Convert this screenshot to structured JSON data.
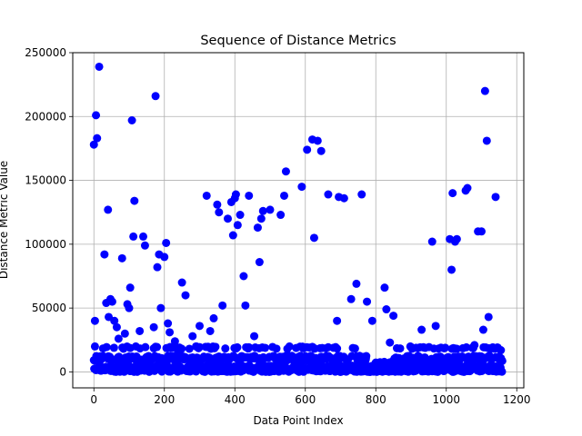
{
  "chart_data": {
    "type": "scatter",
    "title": "Sequence of Distance Metrics",
    "xlabel": "Data Point Index",
    "ylabel": "Distance Metric Value",
    "xlim": [
      -60,
      1220
    ],
    "ylim": [
      -12500,
      250000
    ],
    "x_ticks": [
      0,
      200,
      400,
      600,
      800,
      1000,
      1200
    ],
    "y_ticks": [
      0,
      50000,
      100000,
      150000,
      200000,
      250000
    ],
    "grid": true,
    "color": "#0000ff",
    "x": [
      0,
      3,
      6,
      9,
      15,
      18,
      30,
      35,
      40,
      42,
      47,
      52,
      58,
      65,
      70,
      80,
      88,
      95,
      100,
      103,
      108,
      112,
      115,
      130,
      140,
      145,
      170,
      175,
      180,
      185,
      190,
      200,
      205,
      210,
      215,
      230,
      240,
      250,
      260,
      280,
      290,
      300,
      320,
      330,
      340,
      350,
      355,
      365,
      380,
      390,
      395,
      400,
      403,
      408,
      415,
      425,
      430,
      440,
      455,
      465,
      470,
      475,
      480,
      500,
      530,
      540,
      545,
      590,
      605,
      620,
      625,
      635,
      645,
      665,
      690,
      695,
      710,
      730,
      745,
      760,
      775,
      790,
      825,
      830,
      840,
      850,
      930,
      960,
      970,
      985,
      1010,
      1015,
      1018,
      1025,
      1030,
      1055,
      1060,
      1080,
      1090,
      1100,
      1105,
      1110,
      1115,
      1120,
      1140,
      1150,
      1155
    ],
    "y": [
      178000,
      40000,
      201000,
      183000,
      239000,
      9000,
      92000,
      54000,
      127000,
      43000,
      57000,
      55000,
      40000,
      35000,
      26000,
      89000,
      30000,
      53000,
      50000,
      66000,
      197000,
      106000,
      134000,
      32000,
      106000,
      99000,
      35000,
      216000,
      82000,
      92000,
      50000,
      90000,
      101000,
      38000,
      31000,
      24000,
      15000,
      70000,
      60000,
      28000,
      20000,
      36000,
      138000,
      32000,
      42000,
      131000,
      125000,
      52000,
      120000,
      133000,
      107000,
      136000,
      139000,
      115000,
      123000,
      75000,
      52000,
      138000,
      28000,
      113000,
      86000,
      120000,
      126000,
      127000,
      123000,
      138000,
      157000,
      145000,
      174000,
      182000,
      105000,
      181000,
      173000,
      139000,
      40000,
      137000,
      136000,
      57000,
      69000,
      139000,
      55000,
      40000,
      66000,
      49000,
      23000,
      44000,
      33000,
      102000,
      36000,
      19000,
      104000,
      80000,
      140000,
      102000,
      104000,
      142000,
      144000,
      21000,
      110000,
      110000,
      33000,
      220000,
      181000,
      43000,
      137000,
      12000,
      17000
    ]
  }
}
